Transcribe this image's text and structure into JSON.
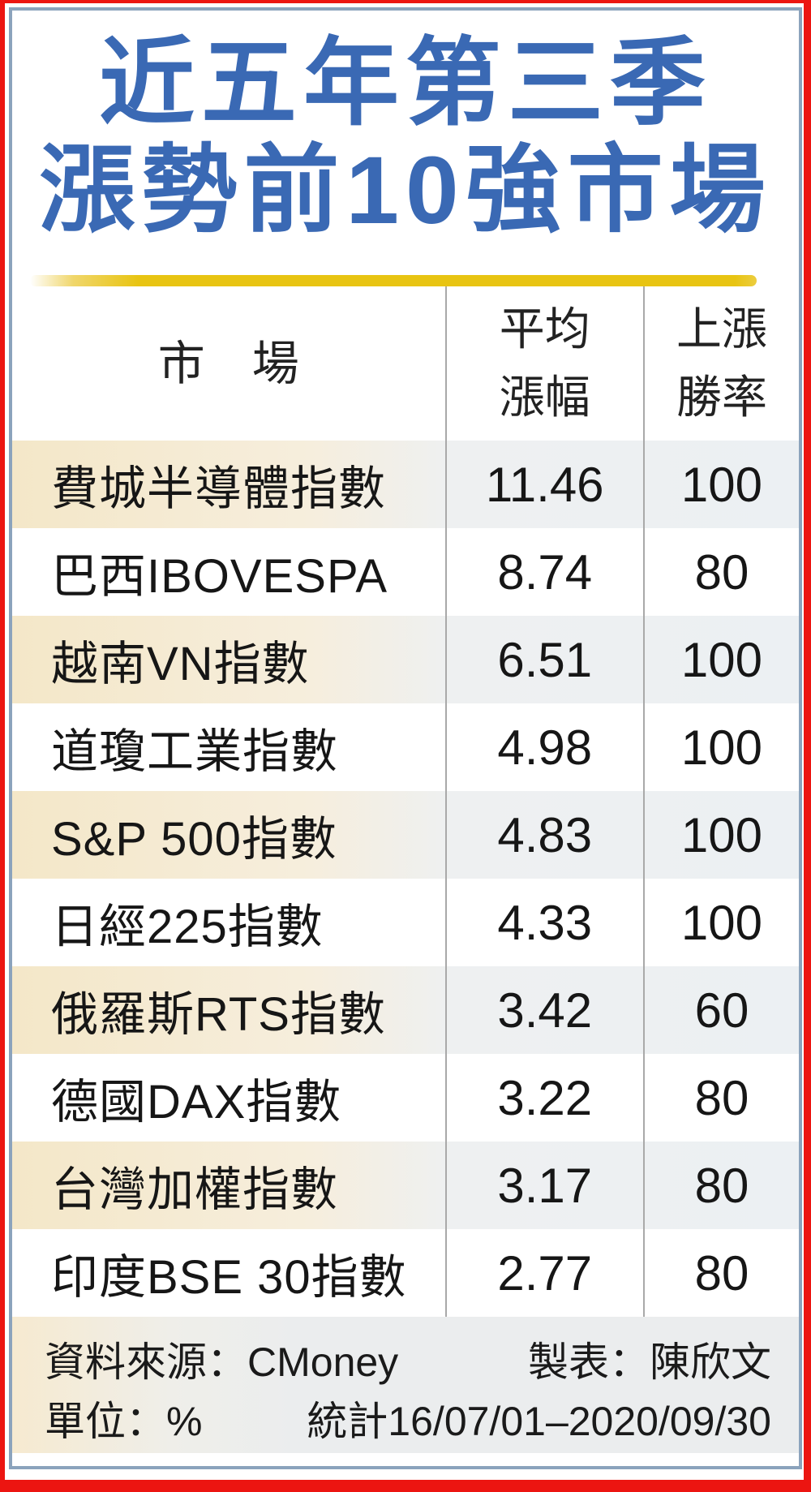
{
  "title": {
    "line1": "近五年第三季",
    "line2": "漲勢前10強市場"
  },
  "columns": {
    "market": "市　場",
    "avg_gain": [
      "平均",
      "漲幅"
    ],
    "win_rate": [
      "上漲",
      "勝率"
    ]
  },
  "rows": [
    {
      "market": "費城半導體指數",
      "avg_gain": "11.46",
      "win_rate": "100"
    },
    {
      "market": "巴西IBOVESPA",
      "avg_gain": "8.74",
      "win_rate": "80"
    },
    {
      "market": "越南VN指數",
      "avg_gain": "6.51",
      "win_rate": "100"
    },
    {
      "market": "道瓊工業指數",
      "avg_gain": "4.98",
      "win_rate": "100"
    },
    {
      "market": "S&P 500指數",
      "avg_gain": "4.83",
      "win_rate": "100"
    },
    {
      "market": "日經225指數",
      "avg_gain": "4.33",
      "win_rate": "100"
    },
    {
      "market": "俄羅斯RTS指數",
      "avg_gain": "3.42",
      "win_rate": "60"
    },
    {
      "market": "德國DAX指數",
      "avg_gain": "3.22",
      "win_rate": "80"
    },
    {
      "market": "台灣加權指數",
      "avg_gain": "3.17",
      "win_rate": "80"
    },
    {
      "market": "印度BSE 30指數",
      "avg_gain": "2.77",
      "win_rate": "80"
    }
  ],
  "footer": {
    "source": "資料來源：CMoney",
    "maker": "製表：陳欣文",
    "unit": "單位：%",
    "period": "統計16/07/01–2020/09/30"
  },
  "colors": {
    "frame_red": "#ec1511",
    "border_blue_gray": "#8ba3bc",
    "title_blue": "#3a69b4",
    "divider_gold": "#e8c412",
    "row_cream": "#f4e7c8",
    "row_gray_blue": "#ecf0f3",
    "footer_bg": "#ebedee",
    "separator_gray": "#a9a9a9"
  },
  "chart_data": {
    "type": "table",
    "title": "近五年第三季漲勢前10強市場",
    "columns": [
      "市場",
      "平均漲幅",
      "上漲勝率"
    ],
    "rows": [
      [
        "費城半導體指數",
        11.46,
        100
      ],
      [
        "巴西IBOVESPA",
        8.74,
        80
      ],
      [
        "越南VN指數",
        6.51,
        100
      ],
      [
        "道瓊工業指數",
        4.98,
        100
      ],
      [
        "S&P 500指數",
        4.83,
        100
      ],
      [
        "日經225指數",
        4.33,
        100
      ],
      [
        "俄羅斯RTS指數",
        3.42,
        60
      ],
      [
        "德國DAX指數",
        3.22,
        80
      ],
      [
        "台灣加權指數",
        3.17,
        80
      ],
      [
        "印度BSE 30指數",
        2.77,
        80
      ]
    ],
    "unit": "%",
    "period": "16/07/01–2020/09/30",
    "source": "CMoney",
    "legend_position": "none",
    "grid": false
  }
}
